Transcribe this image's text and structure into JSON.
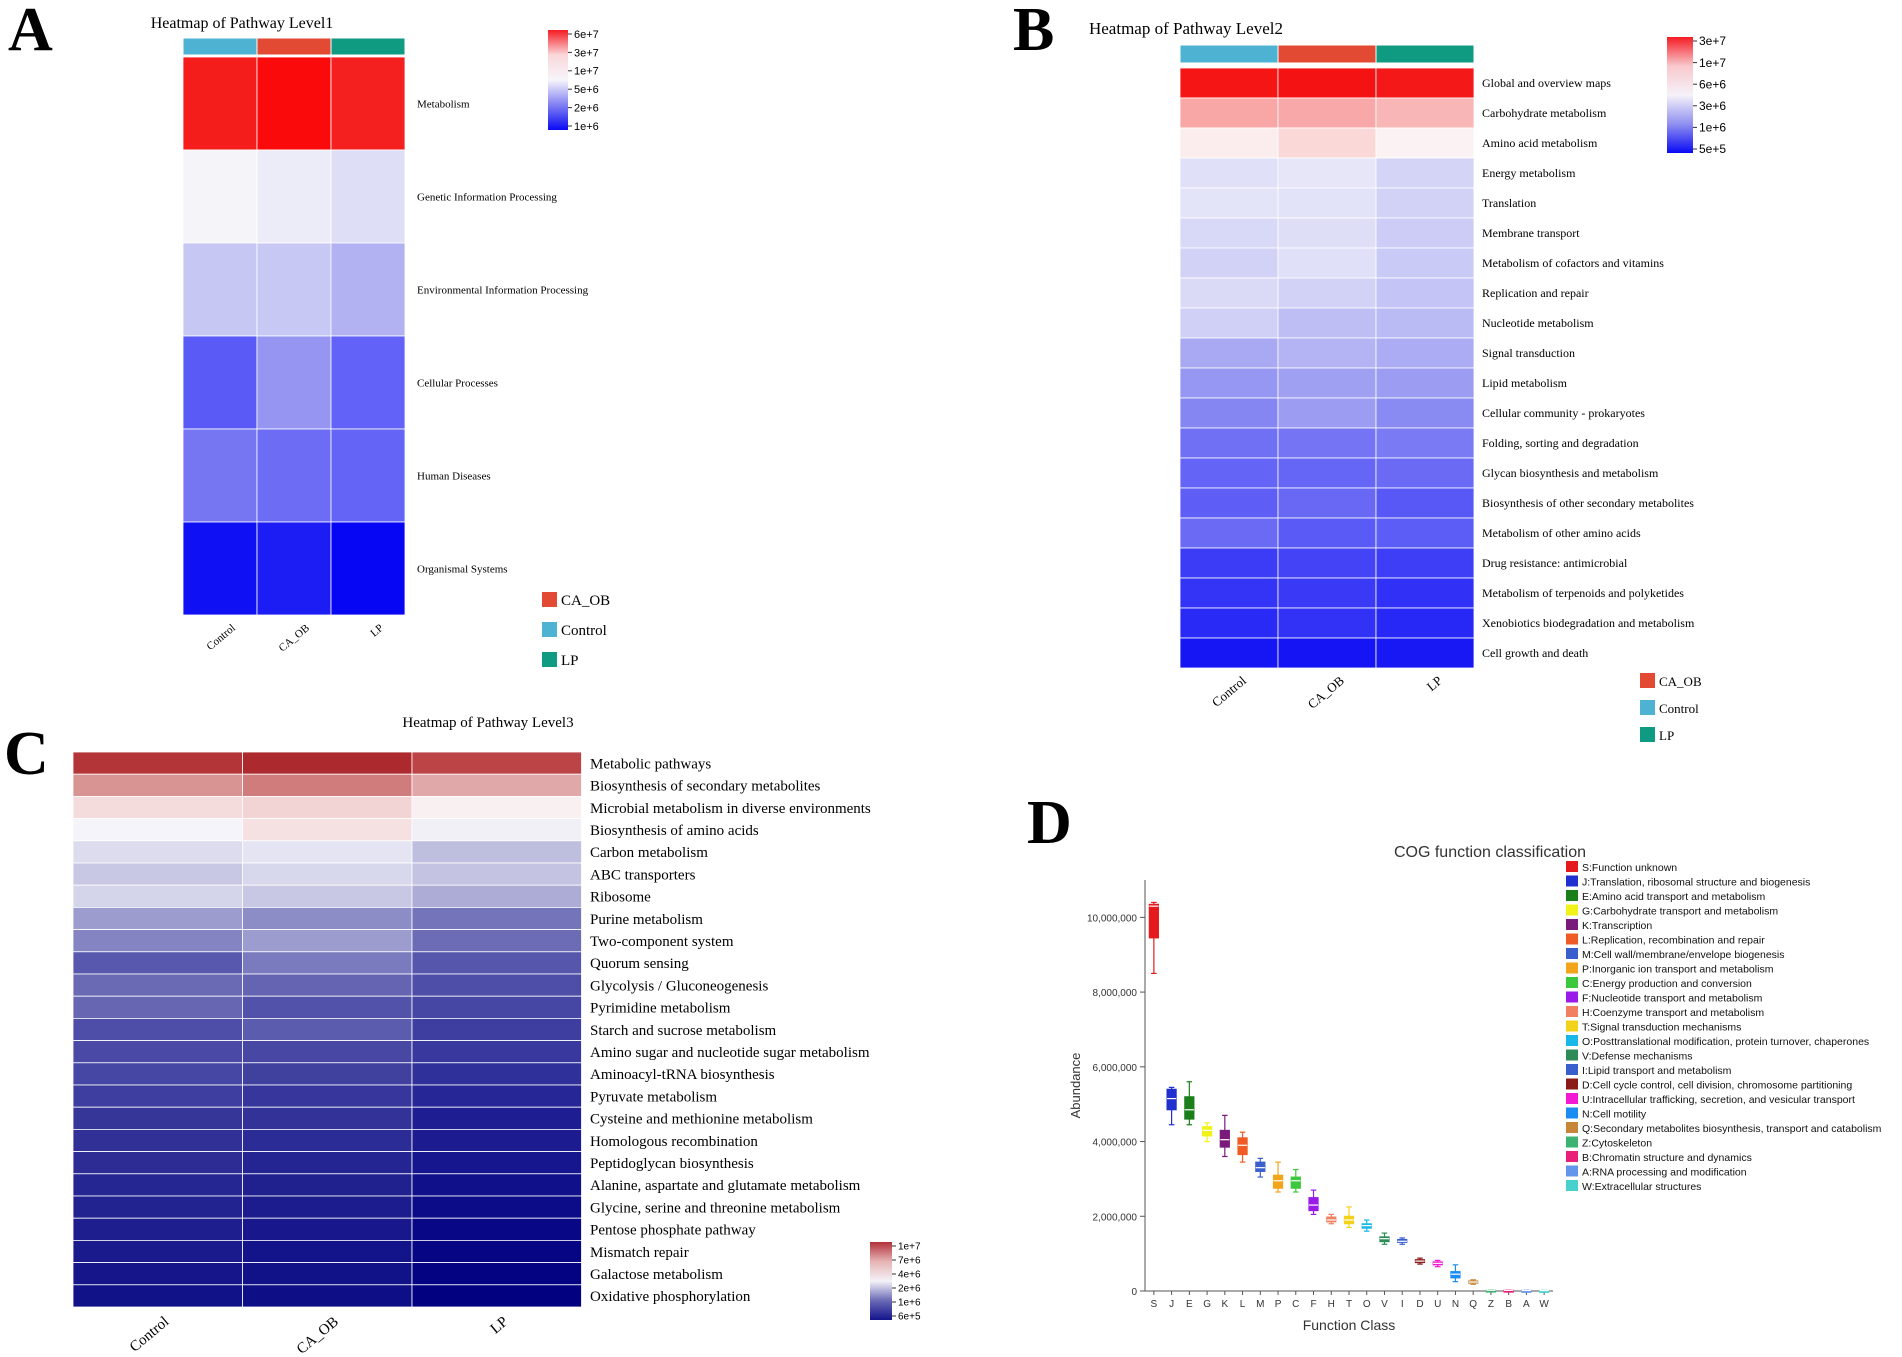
{
  "panels": {
    "A": {
      "letter": "A",
      "title": "Heatmap of Pathway Level1",
      "columns": [
        "Control",
        "CA_OB",
        "LP"
      ],
      "group_colors": [
        "#4EB3D3",
        "#E34A33",
        "#0E9B82"
      ],
      "rows": [
        {
          "label": "Metabolism",
          "colors": [
            "#F51C1C",
            "#FA0A0A",
            "#F42020"
          ]
        },
        {
          "label": "Genetic Information Processing",
          "colors": [
            "#F4F4F9",
            "#ECECF8",
            "#DEDEF7"
          ]
        },
        {
          "label": "Environmental Information Processing",
          "colors": [
            "#C7C7F4",
            "#C8C8F4",
            "#B2B2F3"
          ]
        },
        {
          "label": "Cellular Processes",
          "colors": [
            "#5A5AF7",
            "#9696F2",
            "#6262F8"
          ]
        },
        {
          "label": "Human Diseases",
          "colors": [
            "#7676F3",
            "#6C6CF5",
            "#6464F7"
          ]
        },
        {
          "label": "Organismal Systems",
          "colors": [
            "#1010F5",
            "#1C1CF5",
            "#0606F5"
          ]
        }
      ],
      "legend": {
        "ticks": [
          "6e+7",
          "3e+7",
          "1e+7",
          "5e+6",
          "2e+6",
          "1e+6"
        ],
        "gradient": [
          "#F41C24",
          "#F9D7DA",
          "#F7F5FA",
          "#8080F2",
          "#0A0AF4"
        ]
      },
      "group_legend": [
        {
          "label": "CA_OB",
          "color": "#E34A33"
        },
        {
          "label": "Control",
          "color": "#4EB3D3"
        },
        {
          "label": "LP",
          "color": "#0E9B82"
        }
      ]
    },
    "B": {
      "letter": "B",
      "title": "Heatmap of Pathway Level2",
      "columns": [
        "Control",
        "CA_OB",
        "LP"
      ],
      "group_colors": [
        "#4EB3D3",
        "#E34A33",
        "#0E9B82"
      ],
      "rows": [
        {
          "label": "Global and overview maps",
          "colors": [
            "#F51515",
            "#F51212",
            "#F51818"
          ]
        },
        {
          "label": "Carbohydrate metabolism",
          "colors": [
            "#F8A6A6",
            "#F8A8A8",
            "#F9B6B6"
          ]
        },
        {
          "label": "Amino acid metabolism",
          "colors": [
            "#FBEDED",
            "#FAD8D8",
            "#FBF3F3"
          ]
        },
        {
          "label": "Energy metabolism",
          "colors": [
            "#E0E0F8",
            "#E6E6F8",
            "#D4D4F7"
          ]
        },
        {
          "label": "Translation",
          "colors": [
            "#E4E4F8",
            "#E2E2F8",
            "#D2D2F7"
          ]
        },
        {
          "label": "Membrane transport",
          "colors": [
            "#D8D8F7",
            "#DEDEF7",
            "#CCCCF6"
          ]
        },
        {
          "label": "Metabolism of cofactors and vitamins",
          "colors": [
            "#D2D2F6",
            "#E0E0F8",
            "#CACAF6"
          ]
        },
        {
          "label": "Replication and repair",
          "colors": [
            "#DADAF7",
            "#D2D2F7",
            "#C4C4F6"
          ]
        },
        {
          "label": "Nucleotide metabolism",
          "colors": [
            "#D0D0F6",
            "#BEBEF5",
            "#BABAF5"
          ]
        },
        {
          "label": "Signal transduction",
          "colors": [
            "#A8A8F3",
            "#B4B4F4",
            "#ACACF4"
          ]
        },
        {
          "label": "Lipid metabolism",
          "colors": [
            "#9696F3",
            "#A0A0F3",
            "#9C9CF3"
          ]
        },
        {
          "label": "Cellular community - prokaryotes",
          "colors": [
            "#8686F3",
            "#9C9CF3",
            "#8A8AF3"
          ]
        },
        {
          "label": "Folding, sorting and degradation",
          "colors": [
            "#7070F5",
            "#7474F4",
            "#7A7AF4"
          ]
        },
        {
          "label": "Glycan biosynthesis and metabolism",
          "colors": [
            "#6464F6",
            "#6666F6",
            "#6A6AF5"
          ]
        },
        {
          "label": "Biosynthesis of other secondary metabolites",
          "colors": [
            "#5E5EF6",
            "#6868F5",
            "#5858F6"
          ]
        },
        {
          "label": "Metabolism of other amino acids",
          "colors": [
            "#6A6AF5",
            "#5A5AF6",
            "#5C5CF6"
          ]
        },
        {
          "label": "Drug resistance: antimicrobial",
          "colors": [
            "#3C3CF6",
            "#4444F6",
            "#3E3EF6"
          ]
        },
        {
          "label": "Metabolism of terpenoids and polyketides",
          "colors": [
            "#3434F6",
            "#3A3AF6",
            "#3030F6"
          ]
        },
        {
          "label": "Xenobiotics biodegradation and metabolism",
          "colors": [
            "#2A2AF6",
            "#3232F6",
            "#2828F6"
          ]
        },
        {
          "label": "Cell growth and death",
          "colors": [
            "#1616F5",
            "#1414F5",
            "#1818F5"
          ]
        }
      ],
      "legend": {
        "ticks": [
          "3e+7",
          "1e+7",
          "6e+6",
          "3e+6",
          "1e+6",
          "5e+5"
        ],
        "gradient": [
          "#F41C24",
          "#F8C8CC",
          "#F5F2F9",
          "#9090F0",
          "#0A0AF4"
        ]
      },
      "group_legend": [
        {
          "label": "CA_OB",
          "color": "#E34A33"
        },
        {
          "label": "Control",
          "color": "#4EB3D3"
        },
        {
          "label": "LP",
          "color": "#0E9B82"
        }
      ]
    },
    "C": {
      "letter": "C",
      "title": "Heatmap of Pathway Level3",
      "columns": [
        "Control",
        "CA_OB",
        "LP"
      ],
      "rows": [
        {
          "label": "Metabolic pathways",
          "colors": [
            "#B43538",
            "#AC2A2E",
            "#BC4446"
          ]
        },
        {
          "label": "Biosynthesis of secondary metabolites",
          "colors": [
            "#D89493",
            "#D07C7C",
            "#E0A8A8"
          ]
        },
        {
          "label": "Microbial metabolism in diverse environments",
          "colors": [
            "#F5DCDC",
            "#F2D4D4",
            "#F9F1F1"
          ]
        },
        {
          "label": "Biosynthesis of amino acids",
          "colors": [
            "#F5F4FA",
            "#F5E1E2",
            "#F1F0F7"
          ]
        },
        {
          "label": "Carbon metabolism",
          "colors": [
            "#DCDCEE",
            "#E4E4F2",
            "#BEBEDE"
          ]
        },
        {
          "label": "ABC transporters",
          "colors": [
            "#C8C8E4",
            "#D8D8EC",
            "#C4C4E2"
          ]
        },
        {
          "label": "Ribosome",
          "colors": [
            "#D4D4EA",
            "#C8C8E4",
            "#ACACD6"
          ]
        },
        {
          "label": "Purine metabolism",
          "colors": [
            "#9C9CCE",
            "#8C8CC6",
            "#7474BA"
          ]
        },
        {
          "label": "Two-component system",
          "colors": [
            "#8484C2",
            "#9C9CCE",
            "#6C6CB6"
          ]
        },
        {
          "label": "Quorum sensing",
          "colors": [
            "#5858AE",
            "#7A7ABE",
            "#5656AC"
          ]
        },
        {
          "label": "Glycolysis / Gluconeogenesis",
          "colors": [
            "#6A6AB4",
            "#6464B2",
            "#4E4EA8"
          ]
        },
        {
          "label": "Pyrimidine metabolism",
          "colors": [
            "#6666B2",
            "#5252AA",
            "#4646A4"
          ]
        },
        {
          "label": "Starch and sucrose metabolism",
          "colors": [
            "#4E4EA8",
            "#5C5CAE",
            "#3E3EA0"
          ]
        },
        {
          "label": "Amino sugar and nucleotide sugar metabolism",
          "colors": [
            "#4A4AA6",
            "#4848A4",
            "#38389E"
          ]
        },
        {
          "label": "Aminoacyl-tRNA biosynthesis",
          "colors": [
            "#4646A4",
            "#40409E",
            "#30309A"
          ]
        },
        {
          "label": "Pyruvate metabolism",
          "colors": [
            "#3E3EA0",
            "#36369C",
            "#262696"
          ]
        },
        {
          "label": "Cysteine and methionine metabolism",
          "colors": [
            "#363698",
            "#323298",
            "#1E1E92"
          ]
        },
        {
          "label": "Homologous recombination",
          "colors": [
            "#303096",
            "#2C2C96",
            "#1C1C90"
          ]
        },
        {
          "label": "Peptidoglycan biosynthesis",
          "colors": [
            "#2C2C94",
            "#242492",
            "#16168E"
          ]
        },
        {
          "label": "Alanine, aspartate and glutamate metabolism",
          "colors": [
            "#262692",
            "#20208E",
            "#10108A"
          ]
        },
        {
          "label": "Glycine, serine and threonine metabolism",
          "colors": [
            "#222290",
            "#1C1C8E",
            "#0C0C88"
          ]
        },
        {
          "label": "Pentose phosphate pathway",
          "colors": [
            "#1E1E8E",
            "#18188C",
            "#080886"
          ]
        },
        {
          "label": "Mismatch repair",
          "colors": [
            "#1A1A8C",
            "#14148A",
            "#060684"
          ]
        },
        {
          "label": "Galactose metabolism",
          "colors": [
            "#16168A",
            "#121288",
            "#040482"
          ]
        },
        {
          "label": "Oxidative phosphorylation",
          "colors": [
            "#121288",
            "#0E0E86",
            "#020280"
          ]
        }
      ],
      "legend": {
        "ticks": [
          "1e+7",
          "7e+6",
          "4e+6",
          "2e+6",
          "1e+6",
          "6e+5"
        ],
        "gradient": [
          "#B2303A",
          "#E6B4B4",
          "#F4F2F8",
          "#6A6AB6",
          "#14148C"
        ]
      }
    },
    "D": {
      "letter": "D",
      "chart_data": {
        "type": "box",
        "title": "COG function classification",
        "xlabel": "Function Class",
        "ylabel": "Abundance",
        "ylim": [
          0,
          11000000
        ],
        "yticks": [
          0,
          2000000,
          4000000,
          6000000,
          8000000,
          10000000
        ],
        "ytick_labels": [
          "0",
          "2,000,000",
          "4,000,000",
          "6,000,000",
          "8,000,000",
          "10,000,000"
        ],
        "categories": [
          "S",
          "J",
          "E",
          "G",
          "K",
          "L",
          "M",
          "P",
          "C",
          "F",
          "H",
          "T",
          "O",
          "V",
          "I",
          "D",
          "U",
          "N",
          "Q",
          "Z",
          "B",
          "A",
          "W"
        ],
        "boxes": [
          {
            "cat": "S",
            "color": "#E41A1C",
            "min": 8500000,
            "q1": 9450000,
            "median": 10300000,
            "q3": 10350000,
            "max": 10400000
          },
          {
            "cat": "J",
            "color": "#1F2FD0",
            "min": 4450000,
            "q1": 4850000,
            "median": 5150000,
            "q3": 5400000,
            "max": 5450000
          },
          {
            "cat": "E",
            "color": "#1A7F1A",
            "min": 4450000,
            "q1": 4600000,
            "median": 4850000,
            "q3": 5200000,
            "max": 5600000
          },
          {
            "cat": "G",
            "color": "#F2F21A",
            "min": 4000000,
            "q1": 4150000,
            "median": 4300000,
            "q3": 4400000,
            "max": 4500000
          },
          {
            "cat": "K",
            "color": "#7A1A7A",
            "min": 3600000,
            "q1": 3850000,
            "median": 4050000,
            "q3": 4300000,
            "max": 4700000
          },
          {
            "cat": "L",
            "color": "#F05A24",
            "min": 3450000,
            "q1": 3650000,
            "median": 3900000,
            "q3": 4100000,
            "max": 4250000
          },
          {
            "cat": "M",
            "color": "#3A5FCD",
            "min": 3050000,
            "q1": 3200000,
            "median": 3300000,
            "q3": 3450000,
            "max": 3550000
          },
          {
            "cat": "P",
            "color": "#F2A51A",
            "min": 2650000,
            "q1": 2750000,
            "median": 2950000,
            "q3": 3100000,
            "max": 3450000
          },
          {
            "cat": "C",
            "color": "#3CC83C",
            "min": 2650000,
            "q1": 2750000,
            "median": 2950000,
            "q3": 3050000,
            "max": 3250000
          },
          {
            "cat": "F",
            "color": "#9A1AE8",
            "min": 2050000,
            "q1": 2150000,
            "median": 2300000,
            "q3": 2500000,
            "max": 2700000
          },
          {
            "cat": "H",
            "color": "#F08060",
            "min": 1800000,
            "q1": 1850000,
            "median": 1900000,
            "q3": 1980000,
            "max": 2050000
          },
          {
            "cat": "T",
            "color": "#F2D21A",
            "min": 1700000,
            "q1": 1800000,
            "median": 1900000,
            "q3": 2000000,
            "max": 2250000
          },
          {
            "cat": "O",
            "color": "#1AB8E8",
            "min": 1600000,
            "q1": 1680000,
            "median": 1750000,
            "q3": 1800000,
            "max": 1900000
          },
          {
            "cat": "V",
            "color": "#2E8B57",
            "min": 1250000,
            "q1": 1320000,
            "median": 1400000,
            "q3": 1450000,
            "max": 1550000
          },
          {
            "cat": "I",
            "color": "#3A5FCD",
            "min": 1250000,
            "q1": 1300000,
            "median": 1330000,
            "q3": 1380000,
            "max": 1420000
          },
          {
            "cat": "D",
            "color": "#8B1A1A",
            "min": 720000,
            "q1": 760000,
            "median": 800000,
            "q3": 840000,
            "max": 880000
          },
          {
            "cat": "U",
            "color": "#F21AD2",
            "min": 650000,
            "q1": 700000,
            "median": 740000,
            "q3": 780000,
            "max": 820000
          },
          {
            "cat": "N",
            "color": "#1A8CF2",
            "min": 250000,
            "q1": 350000,
            "median": 450000,
            "q3": 520000,
            "max": 700000
          },
          {
            "cat": "Q",
            "color": "#C8863A",
            "min": 180000,
            "q1": 210000,
            "median": 240000,
            "q3": 270000,
            "max": 300000
          },
          {
            "cat": "Z",
            "color": "#3CB371",
            "min": 10000,
            "q1": 15000,
            "median": 20000,
            "q3": 25000,
            "max": 30000
          },
          {
            "cat": "B",
            "color": "#E8207A",
            "min": 8000,
            "q1": 12000,
            "median": 18000,
            "q3": 22000,
            "max": 28000
          },
          {
            "cat": "A",
            "color": "#6495ED",
            "min": 6000,
            "q1": 10000,
            "median": 14000,
            "q3": 18000,
            "max": 24000
          },
          {
            "cat": "W",
            "color": "#48D1CC",
            "min": 4000,
            "q1": 8000,
            "median": 12000,
            "q3": 16000,
            "max": 20000
          }
        ],
        "legend": [
          {
            "label": "S:Function unknown",
            "color": "#E41A1C"
          },
          {
            "label": "J:Translation, ribosomal structure and biogenesis",
            "color": "#1F2FD0"
          },
          {
            "label": "E:Amino acid transport and metabolism",
            "color": "#1A7F1A"
          },
          {
            "label": "G:Carbohydrate transport and metabolism",
            "color": "#F2F21A"
          },
          {
            "label": "K:Transcription",
            "color": "#7A1A7A"
          },
          {
            "label": "L:Replication, recombination and repair",
            "color": "#F05A24"
          },
          {
            "label": "M:Cell wall/membrane/envelope biogenesis",
            "color": "#3A5FCD"
          },
          {
            "label": "P:Inorganic ion transport and metabolism",
            "color": "#F2A51A"
          },
          {
            "label": "C:Energy production and conversion",
            "color": "#3CC83C"
          },
          {
            "label": "F:Nucleotide transport and metabolism",
            "color": "#9A1AE8"
          },
          {
            "label": "H:Coenzyme transport and metabolism",
            "color": "#F08060"
          },
          {
            "label": "T:Signal transduction mechanisms",
            "color": "#F2D21A"
          },
          {
            "label": "O:Posttranslational modification, protein turnover, chaperones",
            "color": "#1AB8E8"
          },
          {
            "label": "V:Defense mechanisms",
            "color": "#2E8B57"
          },
          {
            "label": "I:Lipid transport and metabolism",
            "color": "#3A5FCD"
          },
          {
            "label": "D:Cell cycle control, cell division, chromosome partitioning",
            "color": "#8B1A1A"
          },
          {
            "label": "U:Intracellular trafficking, secretion, and vesicular transport",
            "color": "#F21AD2"
          },
          {
            "label": "N:Cell motility",
            "color": "#1A8CF2"
          },
          {
            "label": "Q:Secondary metabolites biosynthesis, transport and catabolism",
            "color": "#C8863A"
          },
          {
            "label": "Z:Cytoskeleton",
            "color": "#3CB371"
          },
          {
            "label": "B:Chromatin structure and dynamics",
            "color": "#E8207A"
          },
          {
            "label": "A:RNA processing and modification",
            "color": "#6495ED"
          },
          {
            "label": "W:Extracellular structures",
            "color": "#48D1CC"
          }
        ]
      }
    }
  }
}
